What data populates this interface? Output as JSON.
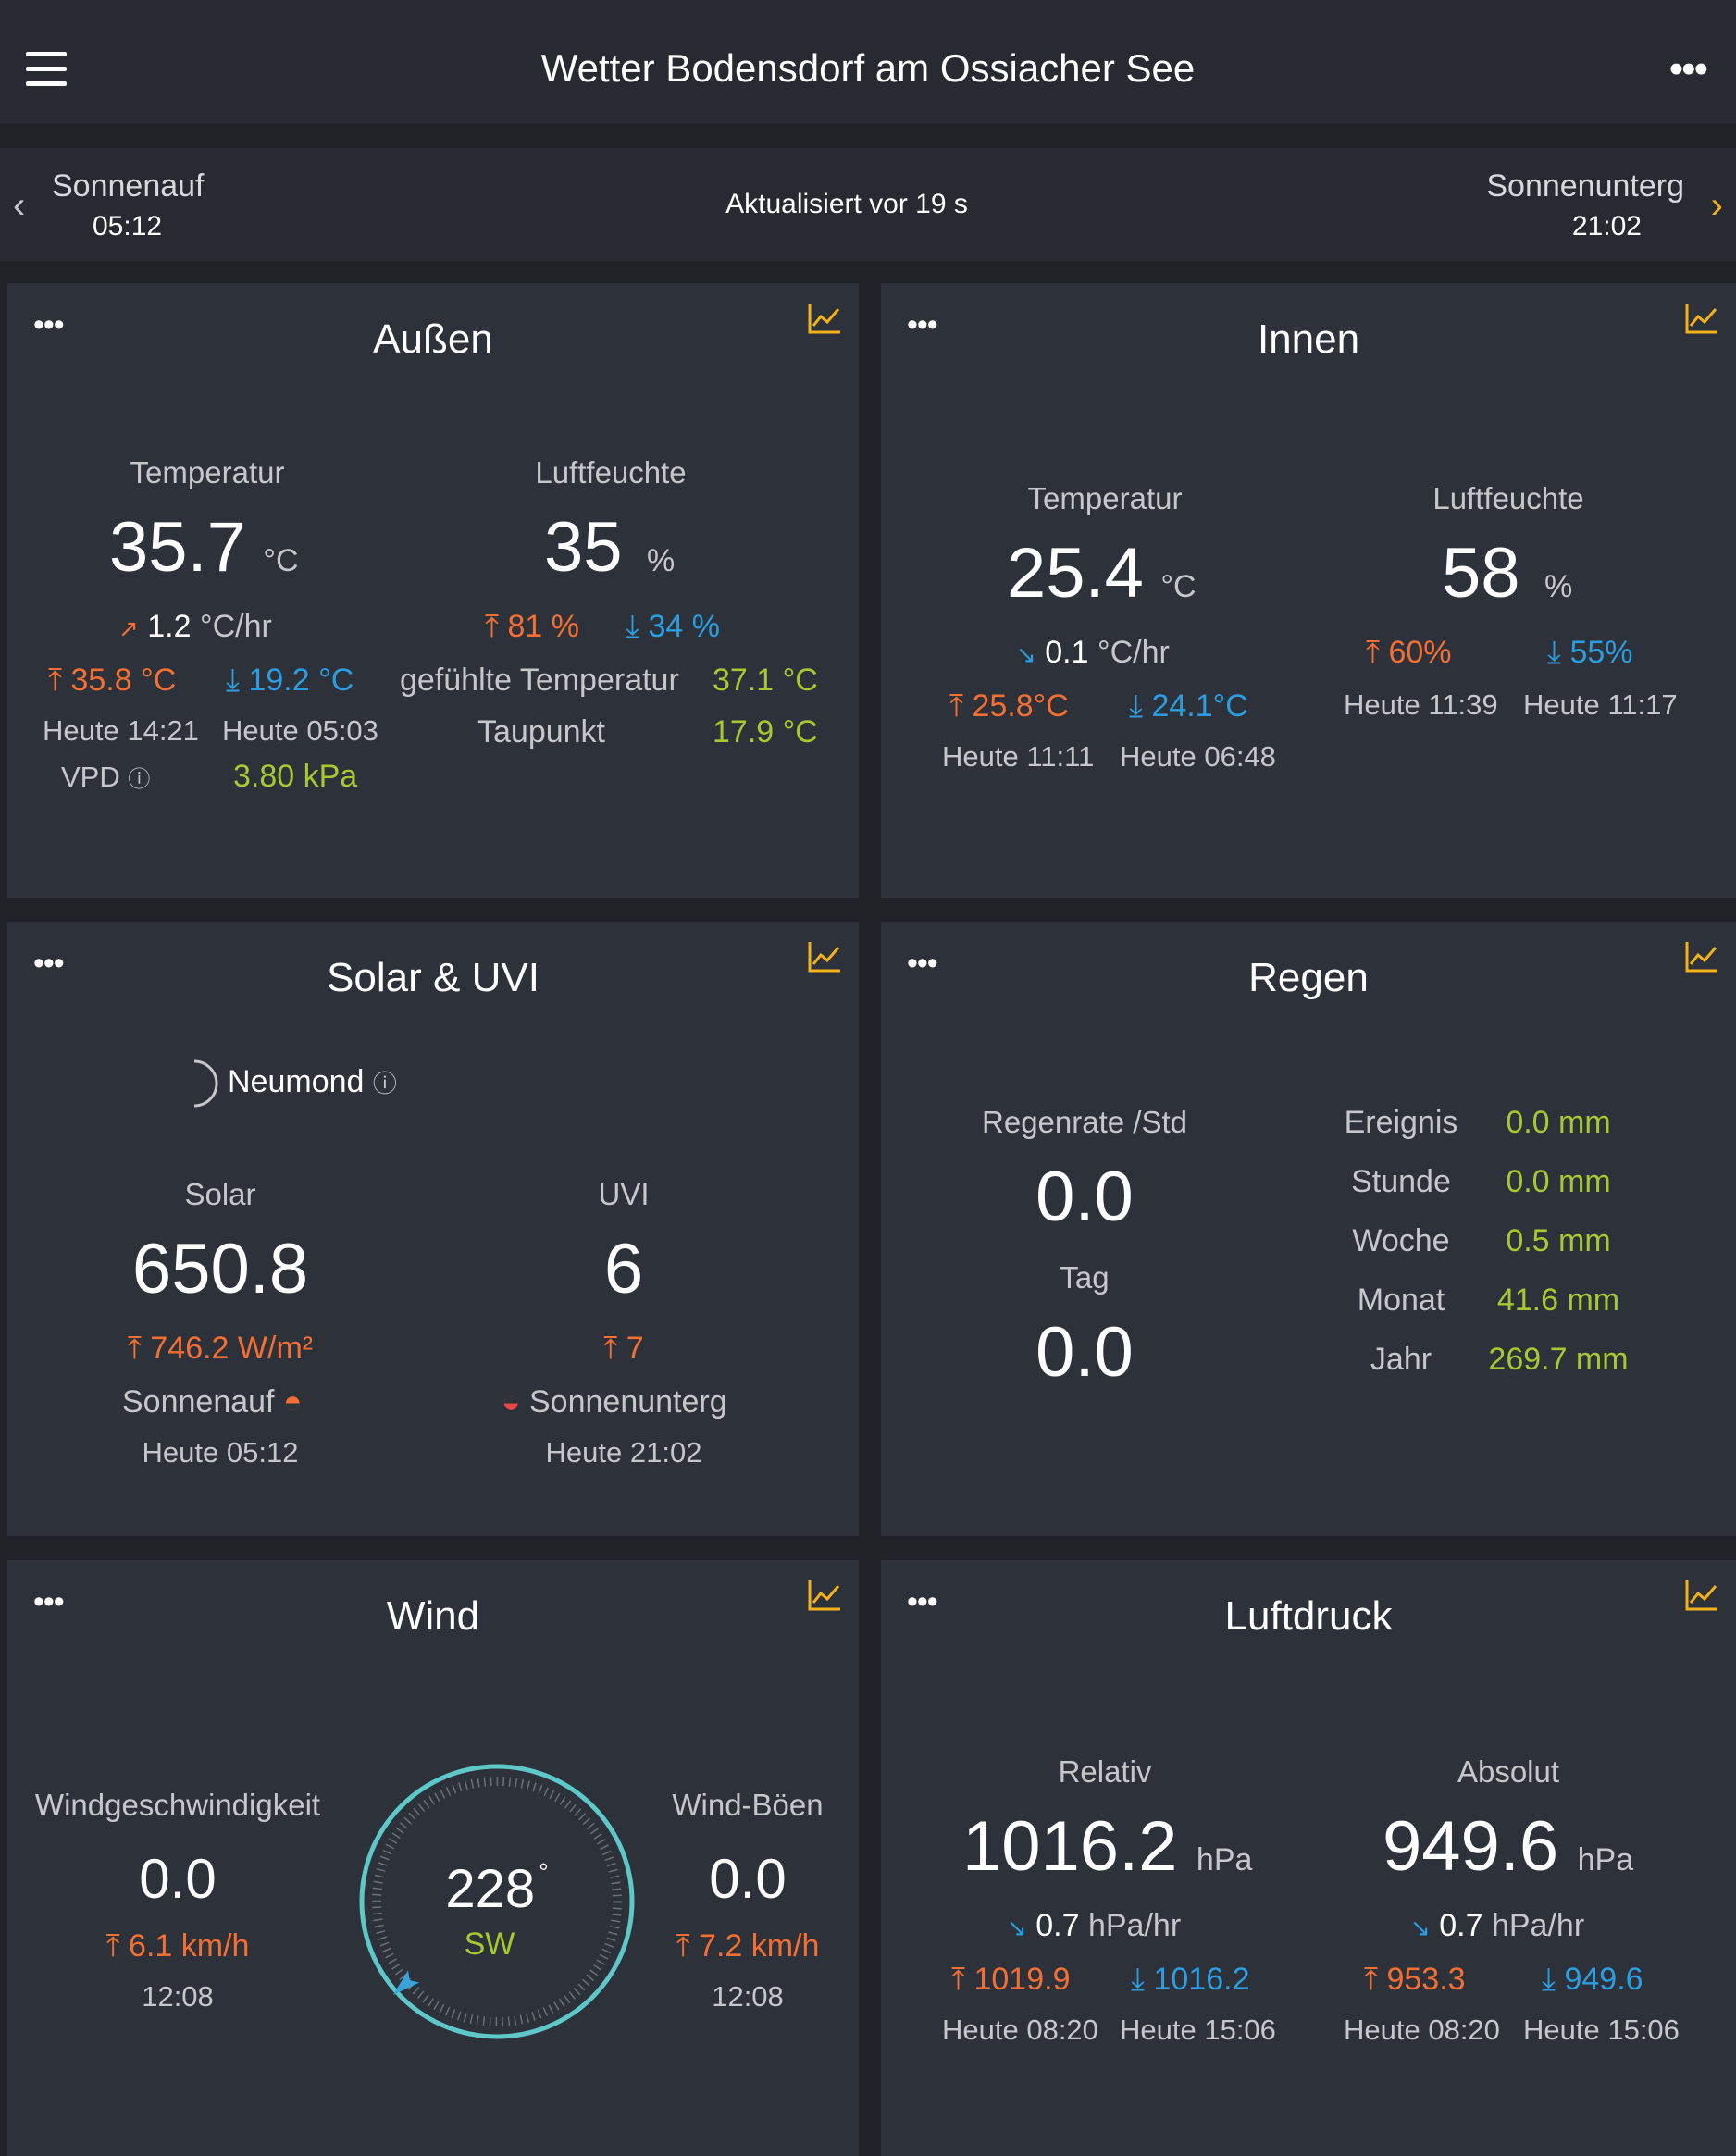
{
  "app": {
    "title": "Wetter Bodensdorf am Ossiacher See"
  },
  "sunbar": {
    "sunrise_label": "Sonnenauf",
    "sunrise_time": "05:12",
    "updated": "Aktualisiert vor 19 s",
    "sunset_label": "Sonnenunterg",
    "sunset_time": "21:02"
  },
  "aussen": {
    "title": "Außen",
    "temp_label": "Temperatur",
    "temp_value": "35.7",
    "temp_unit": "°C",
    "temp_trend_value": "1.2",
    "temp_trend_unit": "°C/hr",
    "temp_max": "35.8 °C",
    "temp_min": "19.2 °C",
    "temp_max_time": "Heute 14:21",
    "temp_min_time": "Heute 05:03",
    "hum_label": "Luftfeuchte",
    "hum_value": "35",
    "hum_unit": "%",
    "hum_max": "81 %",
    "hum_min": "34 %",
    "feels_label": "gefühlte Temperatur",
    "feels_value": "37.1 °C",
    "dew_label": "Taupunkt",
    "dew_value": "17.9 °C",
    "vpd_label": "VPD",
    "vpd_value": "3.80 kPa"
  },
  "innen": {
    "title": "Innen",
    "temp_label": "Temperatur",
    "temp_value": "25.4",
    "temp_unit": "°C",
    "temp_trend_value": "0.1",
    "temp_trend_unit": "°C/hr",
    "temp_max": "25.8°C",
    "temp_min": "24.1°C",
    "temp_max_time": "Heute 11:11",
    "temp_min_time": "Heute 06:48",
    "hum_label": "Luftfeuchte",
    "hum_value": "58",
    "hum_unit": "%",
    "hum_max": "60%",
    "hum_min": "55%",
    "hum_max_time": "Heute 11:39",
    "hum_min_time": "Heute 11:17"
  },
  "solar": {
    "title": "Solar & UVI",
    "moon": "Neumond",
    "solar_label": "Solar",
    "solar_value": "650.8",
    "solar_max": "746.2 W/m²",
    "uvi_label": "UVI",
    "uvi_value": "6",
    "uvi_max": "7",
    "sunrise_label": "Sonnenauf",
    "sunrise_time": "Heute 05:12",
    "sunset_label": "Sonnenunterg",
    "sunset_time": "Heute 21:02"
  },
  "regen": {
    "title": "Regen",
    "rate_label": "Regenrate /Std",
    "rate_value": "0.0",
    "day_label": "Tag",
    "day_value": "0.0",
    "rows": [
      {
        "label": "Ereignis",
        "value": "0.0 mm"
      },
      {
        "label": "Stunde",
        "value": "0.0 mm"
      },
      {
        "label": "Woche",
        "value": "0.5 mm"
      },
      {
        "label": "Monat",
        "value": "41.6 mm"
      },
      {
        "label": "Jahr",
        "value": "269.7 mm"
      }
    ]
  },
  "wind": {
    "title": "Wind",
    "speed_label": "Windgeschwindigkeit",
    "speed_value": "0.0",
    "speed_max": "6.1 km/h",
    "speed_time": "12:08",
    "gust_label": "Wind-Böen",
    "gust_value": "0.0",
    "gust_max": "7.2 km/h",
    "gust_time": "12:08",
    "direction_deg": "228",
    "direction_unit": "°",
    "direction_name": "SW"
  },
  "luftdruck": {
    "title": "Luftdruck",
    "rel_label": "Relativ",
    "rel_value": "1016.2",
    "rel_unit": "hPa",
    "rel_trend_value": "0.7",
    "rel_trend_unit": "hPa/hr",
    "rel_max": "1019.9",
    "rel_min": "1016.2",
    "rel_max_time": "Heute 08:20",
    "rel_min_time": "Heute 15:06",
    "abs_label": "Absolut",
    "abs_value": "949.6",
    "abs_unit": "hPa",
    "abs_trend_value": "0.7",
    "abs_trend_unit": "hPa/hr",
    "abs_max": "953.3",
    "abs_min": "949.6",
    "abs_max_time": "Heute 08:20",
    "abs_min_time": "Heute 15:06"
  },
  "colors": {
    "max": "#f36f34",
    "min": "#2c9de0",
    "value": "#a6c932",
    "accent": "#f2b21a",
    "compass": "#5ec8c8"
  },
  "icons": {
    "menu": "menu-icon",
    "more": "more-icon",
    "chart": "chart-icon",
    "max_arrow": "max-arrow-icon",
    "min_arrow": "min-arrow-icon",
    "trend_up": "trend-up-icon",
    "trend_down": "trend-down-icon"
  }
}
